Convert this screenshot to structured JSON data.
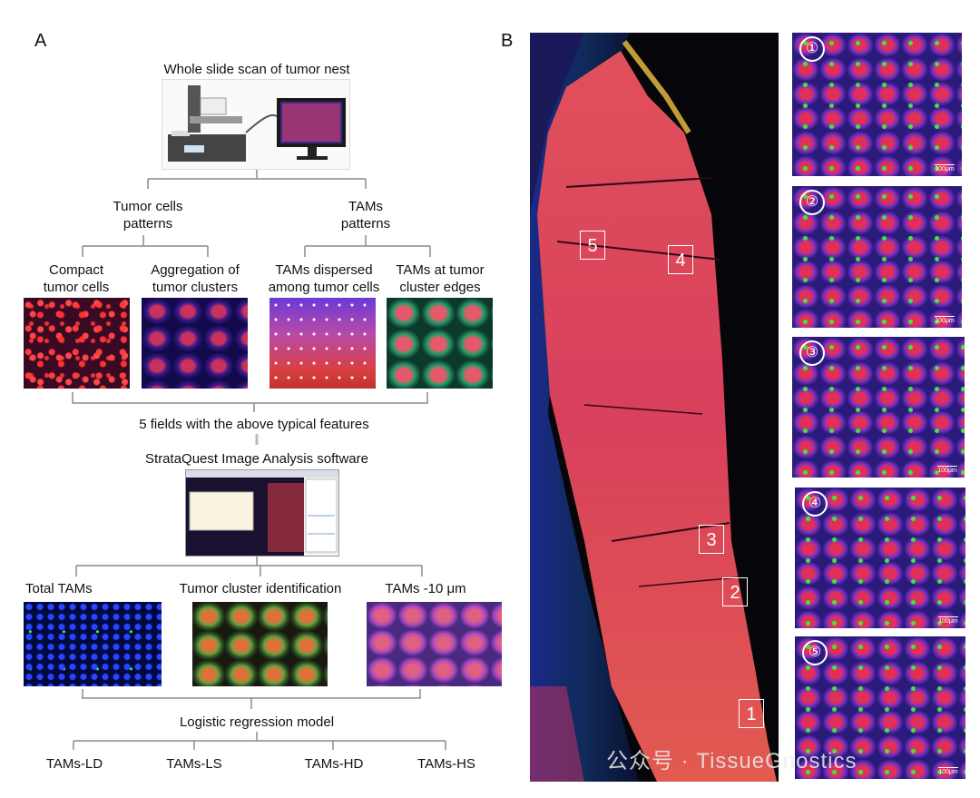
{
  "panel_a": {
    "letter": "A",
    "scan_title": "Whole slide scan of tumor nest",
    "tumor_patterns": [
      "Tumor cells",
      "patterns"
    ],
    "tam_patterns": [
      "TAMs",
      "patterns"
    ],
    "compact": [
      "Compact",
      "tumor cells"
    ],
    "aggregation": [
      "Aggregation of",
      "tumor clusters"
    ],
    "dispersed": [
      "TAMs dispersed",
      "among tumor cells"
    ],
    "edges": [
      "TAMs at tumor",
      "cluster edges"
    ],
    "five_fields": "5 fields with the above typical features",
    "software": "StrataQuest Image Analysis software",
    "total_tams": "Total TAMs",
    "cluster_id": "Tumor cluster identification",
    "tams_10um": "TAMs -10 μm",
    "regression": "Logistic regression model",
    "outcomes": [
      "TAMs-LD",
      "TAMs-LS",
      "TAMs-HD",
      "TAMs-HS"
    ]
  },
  "panel_b": {
    "letter": "B",
    "regions": [
      "5",
      "4",
      "3",
      "2",
      "1"
    ],
    "zoom_labels": [
      "①",
      "②",
      "③",
      "④",
      "⑤"
    ],
    "scale_bar": "100μm"
  },
  "watermark": "公众号 · TissueGnostics"
}
